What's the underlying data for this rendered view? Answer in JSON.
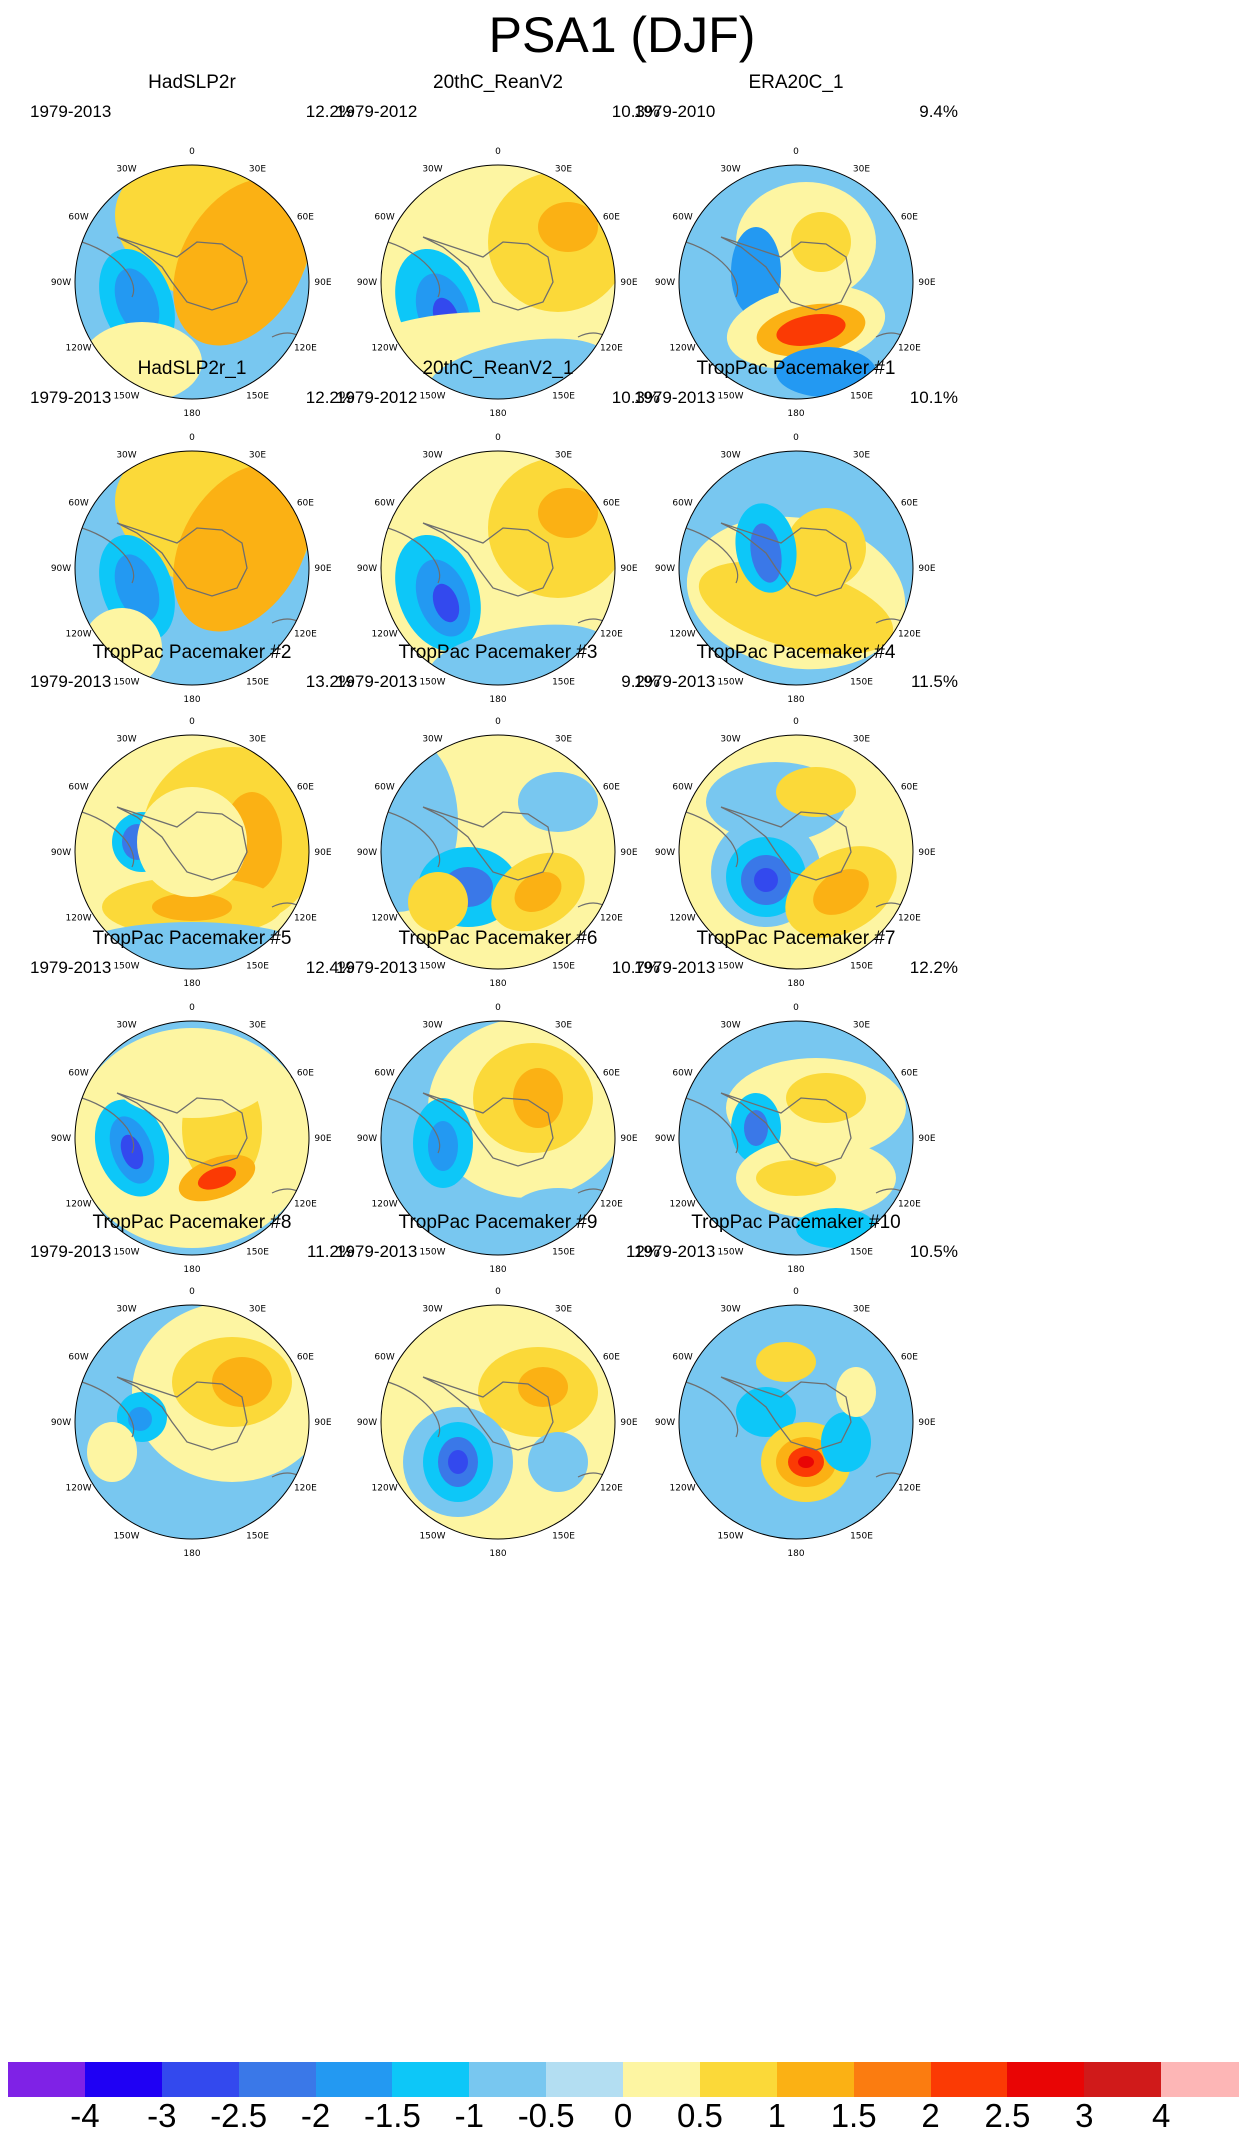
{
  "title": "PSA1 (DJF)",
  "longitude_labels": [
    "0",
    "30E",
    "60E",
    "90E",
    "120E",
    "150E",
    "180",
    "150W",
    "120W",
    "90W",
    "60W",
    "30W"
  ],
  "colorbar": {
    "colors": [
      "#7f22e6",
      "#1f00f4",
      "#3349ee",
      "#3a78e8",
      "#2399f2",
      "#0dc7f8",
      "#78c7f0",
      "#b3def2",
      "#fdf5a2",
      "#fbd939",
      "#fbb114",
      "#fb7c10",
      "#fb3a04",
      "#e90505",
      "#d01a1a",
      "#fdb6b6"
    ],
    "tick_labels": [
      "-4",
      "-3",
      "-2.5",
      "-2",
      "-1.5",
      "-1",
      "-0.5",
      "0",
      "0.5",
      "1",
      "1.5",
      "2",
      "2.5",
      "3",
      "4"
    ]
  },
  "panels": [
    {
      "title": "HadSLP2r",
      "years": "1979-2013",
      "percent": "12.2%"
    },
    {
      "title": "20thC_ReanV2",
      "years": "1979-2012",
      "percent": "10.3%"
    },
    {
      "title": "ERA20C_1",
      "years": "1979-2010",
      "percent": "9.4%"
    },
    {
      "title": "HadSLP2r_1",
      "years": "1979-2013",
      "percent": "12.2%"
    },
    {
      "title": "20thC_ReanV2_1",
      "years": "1979-2012",
      "percent": "10.3%"
    },
    {
      "title": "TropPac Pacemaker #1",
      "years": "1979-2013",
      "percent": "10.1%"
    },
    {
      "title": "TropPac Pacemaker #2",
      "years": "1979-2013",
      "percent": "13.2%"
    },
    {
      "title": "TropPac Pacemaker #3",
      "years": "1979-2013",
      "percent": "9.2%"
    },
    {
      "title": "TropPac Pacemaker #4",
      "years": "1979-2013",
      "percent": "11.5%"
    },
    {
      "title": "TropPac Pacemaker #5",
      "years": "1979-2013",
      "percent": "12.4%"
    },
    {
      "title": "TropPac Pacemaker #6",
      "years": "1979-2013",
      "percent": "10.7%"
    },
    {
      "title": "TropPac Pacemaker #7",
      "years": "1979-2013",
      "percent": "12.2%"
    },
    {
      "title": "TropPac Pacemaker #8",
      "years": "1979-2013",
      "percent": "11.2%"
    },
    {
      "title": "TropPac Pacemaker #9",
      "years": "1979-2013",
      "percent": "12%"
    },
    {
      "title": "TropPac Pacemaker #10",
      "years": "1979-2013",
      "percent": "10.5%"
    }
  ]
}
